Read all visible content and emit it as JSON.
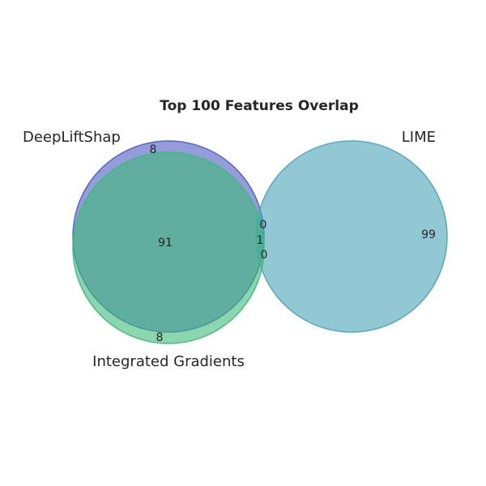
{
  "chart_data": {
    "type": "venn",
    "title": "Top 100 Features Overlap",
    "sets": [
      {
        "name": "DeepLiftShap",
        "size": 100,
        "color": "#4c5bbf"
      },
      {
        "name": "Integrated Gradients",
        "size": 100,
        "color": "#3db97a"
      },
      {
        "name": "LIME",
        "size": 100,
        "color": "#4aa3b8"
      }
    ],
    "regions": [
      {
        "sets": [
          "DeepLiftShap"
        ],
        "value": "8"
      },
      {
        "sets": [
          "Integrated Gradients"
        ],
        "value": "8"
      },
      {
        "sets": [
          "LIME"
        ],
        "value": "99"
      },
      {
        "sets": [
          "DeepLiftShap",
          "Integrated Gradients"
        ],
        "value": "91"
      },
      {
        "sets": [
          "DeepLiftShap",
          "LIME"
        ],
        "value": "0"
      },
      {
        "sets": [
          "Integrated Gradients",
          "LIME"
        ],
        "value": "0"
      },
      {
        "sets": [
          "DeepLiftShap",
          "Integrated Gradients",
          "LIME"
        ],
        "value": "1"
      }
    ]
  }
}
